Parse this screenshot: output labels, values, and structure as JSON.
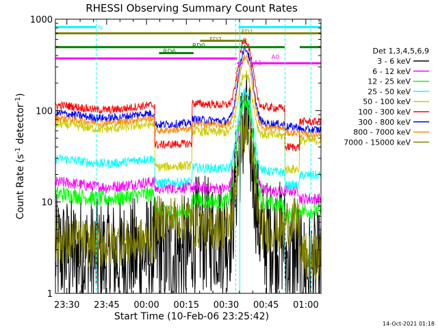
{
  "chart_data": {
    "type": "line",
    "title": "RHESSI Observing Summary Count Rates",
    "xlabel": "Start Time (10-Feb-06 23:25:42)",
    "ylabel_main": "Count Rate (s",
    "ylabel_sup1": "-1",
    "ylabel_mid": " detector",
    "ylabel_sup2": "-1",
    "ylabel_end": ")",
    "yscale": "log",
    "ylim": [
      1,
      1000
    ],
    "xlim_minutes": [
      0,
      100
    ],
    "x_tick_labels": [
      {
        "label": "23:30",
        "t": 4.3
      },
      {
        "label": "23:45",
        "t": 19.3
      },
      {
        "label": "00:00",
        "t": 34.3
      },
      {
        "label": "00:15",
        "t": 49.3
      },
      {
        "label": "00:30",
        "t": 64.3
      },
      {
        "label": "00:45",
        "t": 79.3
      },
      {
        "label": "01:00",
        "t": 94.3
      }
    ],
    "y_tick_labels": [
      {
        "label": "1",
        "v": 1
      },
      {
        "label": "10",
        "v": 10
      },
      {
        "label": "100",
        "v": 100
      },
      {
        "label": "1000",
        "v": 1000
      }
    ],
    "legend_title": "Det 1,3,4,5,6,9",
    "legend_position": "right",
    "series": [
      {
        "name": "3 - 6 keV",
        "color": "#000000",
        "base": 2.6,
        "eclipse": 2.6,
        "day": 4.5,
        "peak": 60,
        "noise": 0.5
      },
      {
        "name": "6 - 12 keV",
        "color": "#ff00ff",
        "base": 15.5,
        "eclipse": 14,
        "day": 14.5,
        "peak": 110,
        "noise": 0.05
      },
      {
        "name": "12 - 25 keV",
        "color": "#00ff00",
        "base": 11.5,
        "eclipse": 7.5,
        "day": 10.5,
        "peak": 120,
        "noise": 0.07
      },
      {
        "name": "25 - 50 keV",
        "color": "#00ffff",
        "base": 28,
        "eclipse": 16,
        "day": 24,
        "peak": 140,
        "noise": 0.04
      },
      {
        "name": "50 - 100 keV",
        "color": "#cccc00",
        "base": 67,
        "eclipse": 24,
        "day": 60,
        "peak": 200,
        "noise": 0.04
      },
      {
        "name": "100 - 300 keV",
        "color": "#ff0000",
        "base": 108,
        "eclipse": 42,
        "day": 120,
        "peak": 480,
        "noise": 0.035
      },
      {
        "name": "300 - 800 keV",
        "color": "#0000ff",
        "base": 88,
        "eclipse": 70,
        "day": 80,
        "peak": 400,
        "noise": 0.035
      },
      {
        "name": "800 - 7000 keV",
        "color": "#ff8800",
        "base": 78,
        "eclipse": 60,
        "day": 72,
        "peak": 320,
        "noise": 0.03
      },
      {
        "name": "7000 - 15000 keV",
        "color": "#808000",
        "base": 3.6,
        "eclipse": 6.5,
        "day": 5.5,
        "peak": 55,
        "noise": 0.2
      }
    ],
    "flags": [
      {
        "label": "N",
        "color": "#00ffff",
        "v": 820,
        "segments": [
          [
            0,
            15.4
          ],
          [
            68.9,
            100
          ]
        ]
      },
      {
        "label": "FD1",
        "color": "#808000",
        "v": 700,
        "segments": [
          [
            0,
            100
          ]
        ]
      },
      {
        "label": "FD2",
        "color": "#808000",
        "v": 580,
        "segments": [
          [
            54.5,
            71.5
          ]
        ]
      },
      {
        "label": "RD0",
        "color": "#008000",
        "v": 495,
        "segments": [
          [
            0,
            86.3
          ],
          [
            92,
            100
          ]
        ]
      },
      {
        "label": "RD6",
        "color": "#008000",
        "v": 425,
        "segments": [
          [
            39,
            52
          ]
        ]
      },
      {
        "label": "A0",
        "color": "#ff00ff",
        "v": 372,
        "segments": [
          [
            0,
            68.5
          ]
        ]
      },
      {
        "label": "A1",
        "color": "#ff00ff",
        "v": 330,
        "segments": [
          [
            68.5,
            70.5
          ],
          [
            74,
            100
          ]
        ]
      }
    ],
    "dashed_vlines_minutes": [
      15.4,
      67.9,
      86.5,
      96.2
    ],
    "solid_vlines_minutes": [
      0,
      69.4
    ],
    "timestamp": "14-Oct-2021 01:18"
  }
}
